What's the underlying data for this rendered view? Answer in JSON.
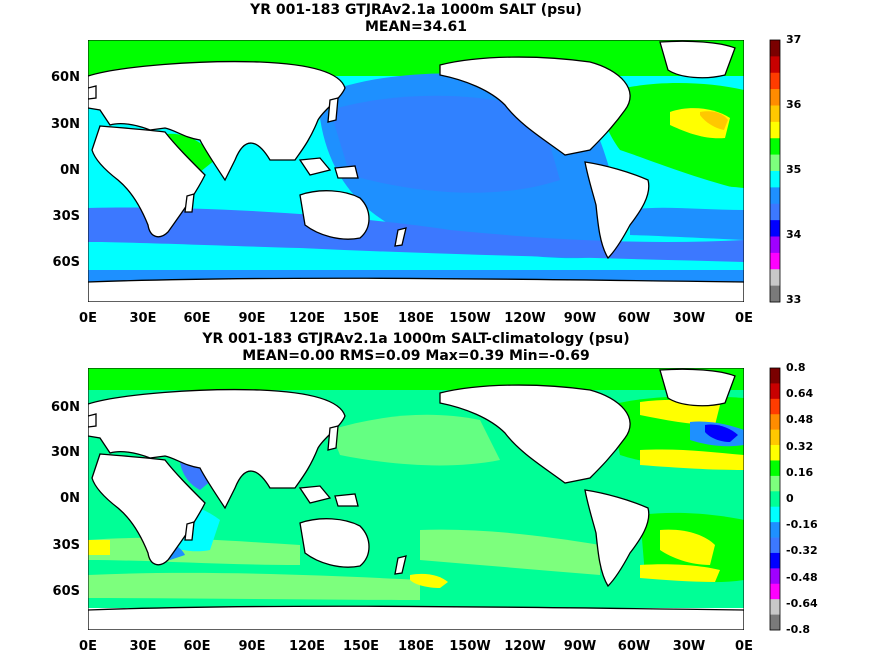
{
  "panels": [
    {
      "title_line1": "YR 001-183 GTJRAv2.1a 1000m SALT (psu)",
      "title_line2": "MEAN=34.61",
      "colorbar": {
        "labels": [
          "37",
          "36",
          "35",
          "34",
          "33"
        ],
        "colors": [
          "#7a0000",
          "#c80000",
          "#ff3c00",
          "#ff8c00",
          "#ffc800",
          "#ffff00",
          "#00ff00",
          "#7dff7d",
          "#00ffff",
          "#1e90ff",
          "#3c78ff",
          "#0000ff",
          "#a000ff",
          "#ff00ff",
          "#c8c8c8",
          "#7a7a7a"
        ]
      },
      "y_ticks": [
        "60N",
        "30N",
        "0N",
        "30S",
        "60S"
      ],
      "x_ticks": [
        "0E",
        "30E",
        "60E",
        "90E",
        "120E",
        "150E",
        "180E",
        "150W",
        "120W",
        "90W",
        "60W",
        "30W",
        "0E"
      ]
    },
    {
      "title_line1": "YR 001-183 GTJRAv2.1a 1000m SALT-climatology (psu)",
      "title_line2": "MEAN=0.00   RMS=0.09   Max=0.39   Min=-0.69",
      "colorbar": {
        "labels": [
          "0.8",
          "0.64",
          "0.48",
          "0.32",
          "0.16",
          "0",
          "-0.16",
          "-0.32",
          "-0.48",
          "-0.64",
          "-0.8"
        ],
        "colors": [
          "#7a0000",
          "#c80000",
          "#ff3c00",
          "#ff8c00",
          "#ffc800",
          "#ffff00",
          "#00ff00",
          "#7dff7d",
          "#00ff96",
          "#00ffff",
          "#1e90ff",
          "#3c78ff",
          "#0000ff",
          "#a000ff",
          "#ff00ff",
          "#c8c8c8",
          "#7a7a7a"
        ]
      },
      "y_ticks": [
        "60N",
        "30N",
        "0N",
        "30S",
        "60S"
      ],
      "x_ticks": [
        "0E",
        "30E",
        "60E",
        "90E",
        "120E",
        "150E",
        "180E",
        "150W",
        "120W",
        "90W",
        "60W",
        "30W",
        "0E"
      ]
    }
  ]
}
